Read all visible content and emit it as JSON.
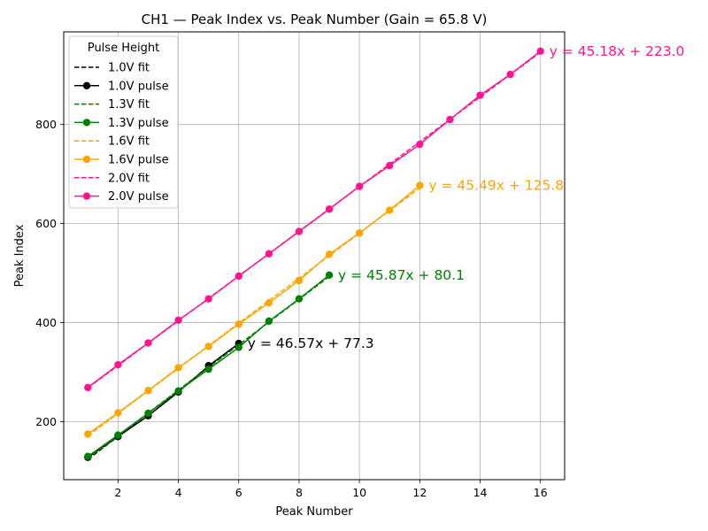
{
  "chart_data": {
    "type": "line",
    "title": "CH1 — Peak Index vs. Peak Number (Gain = 65.8 V)",
    "xlabel": "Peak Number",
    "ylabel": "Peak Index",
    "xlim": [
      0.2,
      16.8
    ],
    "ylim": [
      83,
      987
    ],
    "xticks": [
      2,
      4,
      6,
      8,
      10,
      12,
      14,
      16
    ],
    "yticks": [
      200,
      400,
      600,
      800
    ],
    "grid": true,
    "legend": {
      "title": "Pulse Height",
      "placement": "top-left",
      "entries": [
        "1.0V fit",
        "1.0V pulse",
        "1.3V fit",
        "1.3V pulse",
        "1.6V fit",
        "1.6V pulse",
        "2.0V fit",
        "2.0V pulse"
      ]
    },
    "series": [
      {
        "name": "1.0V",
        "fit_label": "1.0V fit",
        "pulse_label": "1.0V pulse",
        "color": "#000000",
        "x": [
          1,
          2,
          3,
          4,
          5,
          6
        ],
        "y": [
          128,
          170,
          212,
          260,
          313,
          358
        ],
        "slope": 46.57,
        "intercept": 77.3,
        "annotation": "y = 46.57x + 77.3"
      },
      {
        "name": "1.3V",
        "fit_label": "1.3V fit",
        "pulse_label": "1.3V pulse",
        "color": "#008000",
        "x": [
          1,
          2,
          3,
          4,
          5,
          6,
          7,
          8,
          9
        ],
        "y": [
          130,
          173,
          217,
          262,
          306,
          350,
          403,
          448,
          496
        ],
        "slope": 45.87,
        "intercept": 80.1,
        "annotation": "y = 45.87x + 80.1"
      },
      {
        "name": "1.6V",
        "fit_label": "1.6V fit",
        "pulse_label": "1.6V pulse",
        "color": "#ffa500",
        "x": [
          1,
          2,
          3,
          4,
          5,
          6,
          7,
          8,
          9,
          10,
          11,
          12
        ],
        "y": [
          175,
          218,
          263,
          309,
          352,
          397,
          440,
          485,
          538,
          581,
          627,
          677
        ],
        "slope": 45.49,
        "intercept": 125.8,
        "annotation": "y = 45.49x + 125.8"
      },
      {
        "name": "2.0V",
        "fit_label": "2.0V fit",
        "pulse_label": "2.0V pulse",
        "color": "#ff1493",
        "x": [
          1,
          2,
          3,
          4,
          5,
          6,
          7,
          8,
          9,
          10,
          11,
          12,
          13,
          14,
          15,
          16
        ],
        "y": [
          269,
          315,
          359,
          405,
          448,
          494,
          539,
          584,
          629,
          675,
          717,
          760,
          810,
          859,
          901,
          948
        ],
        "slope": 45.18,
        "intercept": 223.0,
        "annotation": "y = 45.18x + 223.0"
      }
    ]
  }
}
